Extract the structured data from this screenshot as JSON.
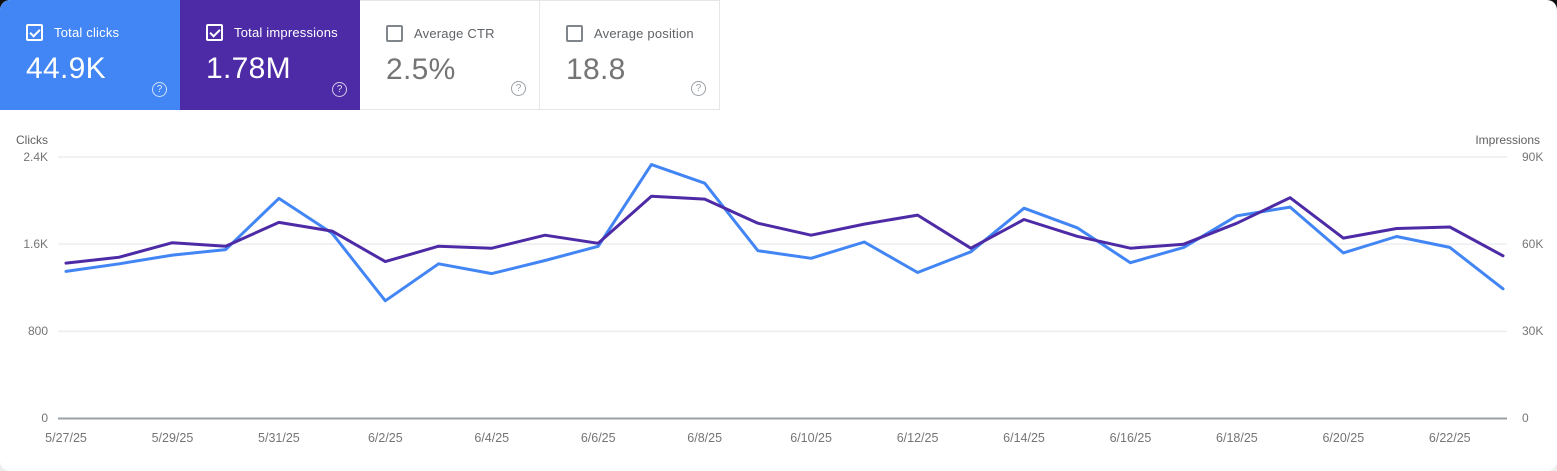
{
  "cards": [
    {
      "label": "Total clicks",
      "value": "44.9K",
      "selected": true,
      "color": "#4285f4"
    },
    {
      "label": "Total impressions",
      "value": "1.78M",
      "selected": true,
      "color": "#4e2ba6"
    },
    {
      "label": "Average CTR",
      "value": "2.5%",
      "selected": false,
      "color": "#ffffff"
    },
    {
      "label": "Average position",
      "value": "18.8",
      "selected": false,
      "color": "#ffffff"
    }
  ],
  "icons": {
    "help_glyph": "?"
  },
  "chart_data": {
    "type": "line",
    "x": [
      "5/27/25",
      "5/28/25",
      "5/29/25",
      "5/30/25",
      "5/31/25",
      "6/1/25",
      "6/2/25",
      "6/3/25",
      "6/4/25",
      "6/5/25",
      "6/6/25",
      "6/7/25",
      "6/8/25",
      "6/9/25",
      "6/10/25",
      "6/11/25",
      "6/12/25",
      "6/13/25",
      "6/14/25",
      "6/15/25",
      "6/16/25",
      "6/17/25",
      "6/18/25",
      "6/19/25",
      "6/20/25",
      "6/21/25",
      "6/22/25",
      "6/23/25"
    ],
    "x_tick_labels": [
      "5/27/25",
      "5/29/25",
      "5/31/25",
      "6/2/25",
      "6/4/25",
      "6/6/25",
      "6/8/25",
      "6/10/25",
      "6/12/25",
      "6/14/25",
      "6/16/25",
      "6/18/25",
      "6/20/25",
      "6/22/25"
    ],
    "left_axis": {
      "title": "Clicks",
      "ticks": [
        "2.4K",
        "1.6K",
        "800",
        "0"
      ],
      "max": 2400
    },
    "right_axis": {
      "title": "Impressions",
      "ticks": [
        "90K",
        "60K",
        "30K",
        "0"
      ],
      "max": 90000
    },
    "grid": "horizontal",
    "legend_position": "none",
    "series": [
      {
        "name": "Total clicks",
        "axis": "left",
        "color": "#4285f4",
        "values": [
          1350,
          1420,
          1500,
          1550,
          2020,
          1700,
          1080,
          1420,
          1330,
          1450,
          1580,
          2330,
          2160,
          1540,
          1470,
          1620,
          1340,
          1530,
          1930,
          1750,
          1430,
          1570,
          1860,
          1940,
          1520,
          1670,
          1570,
          1190
        ]
      },
      {
        "name": "Total impressions",
        "axis": "right",
        "color": "#4e2ba6",
        "values": [
          53500,
          55500,
          60500,
          59300,
          67500,
          64500,
          54000,
          59300,
          58600,
          63100,
          60300,
          76500,
          75500,
          67200,
          63100,
          66900,
          70000,
          58600,
          68500,
          62700,
          58600,
          60000,
          67200,
          76000,
          62100,
          65400,
          65900,
          56000
        ]
      }
    ]
  }
}
